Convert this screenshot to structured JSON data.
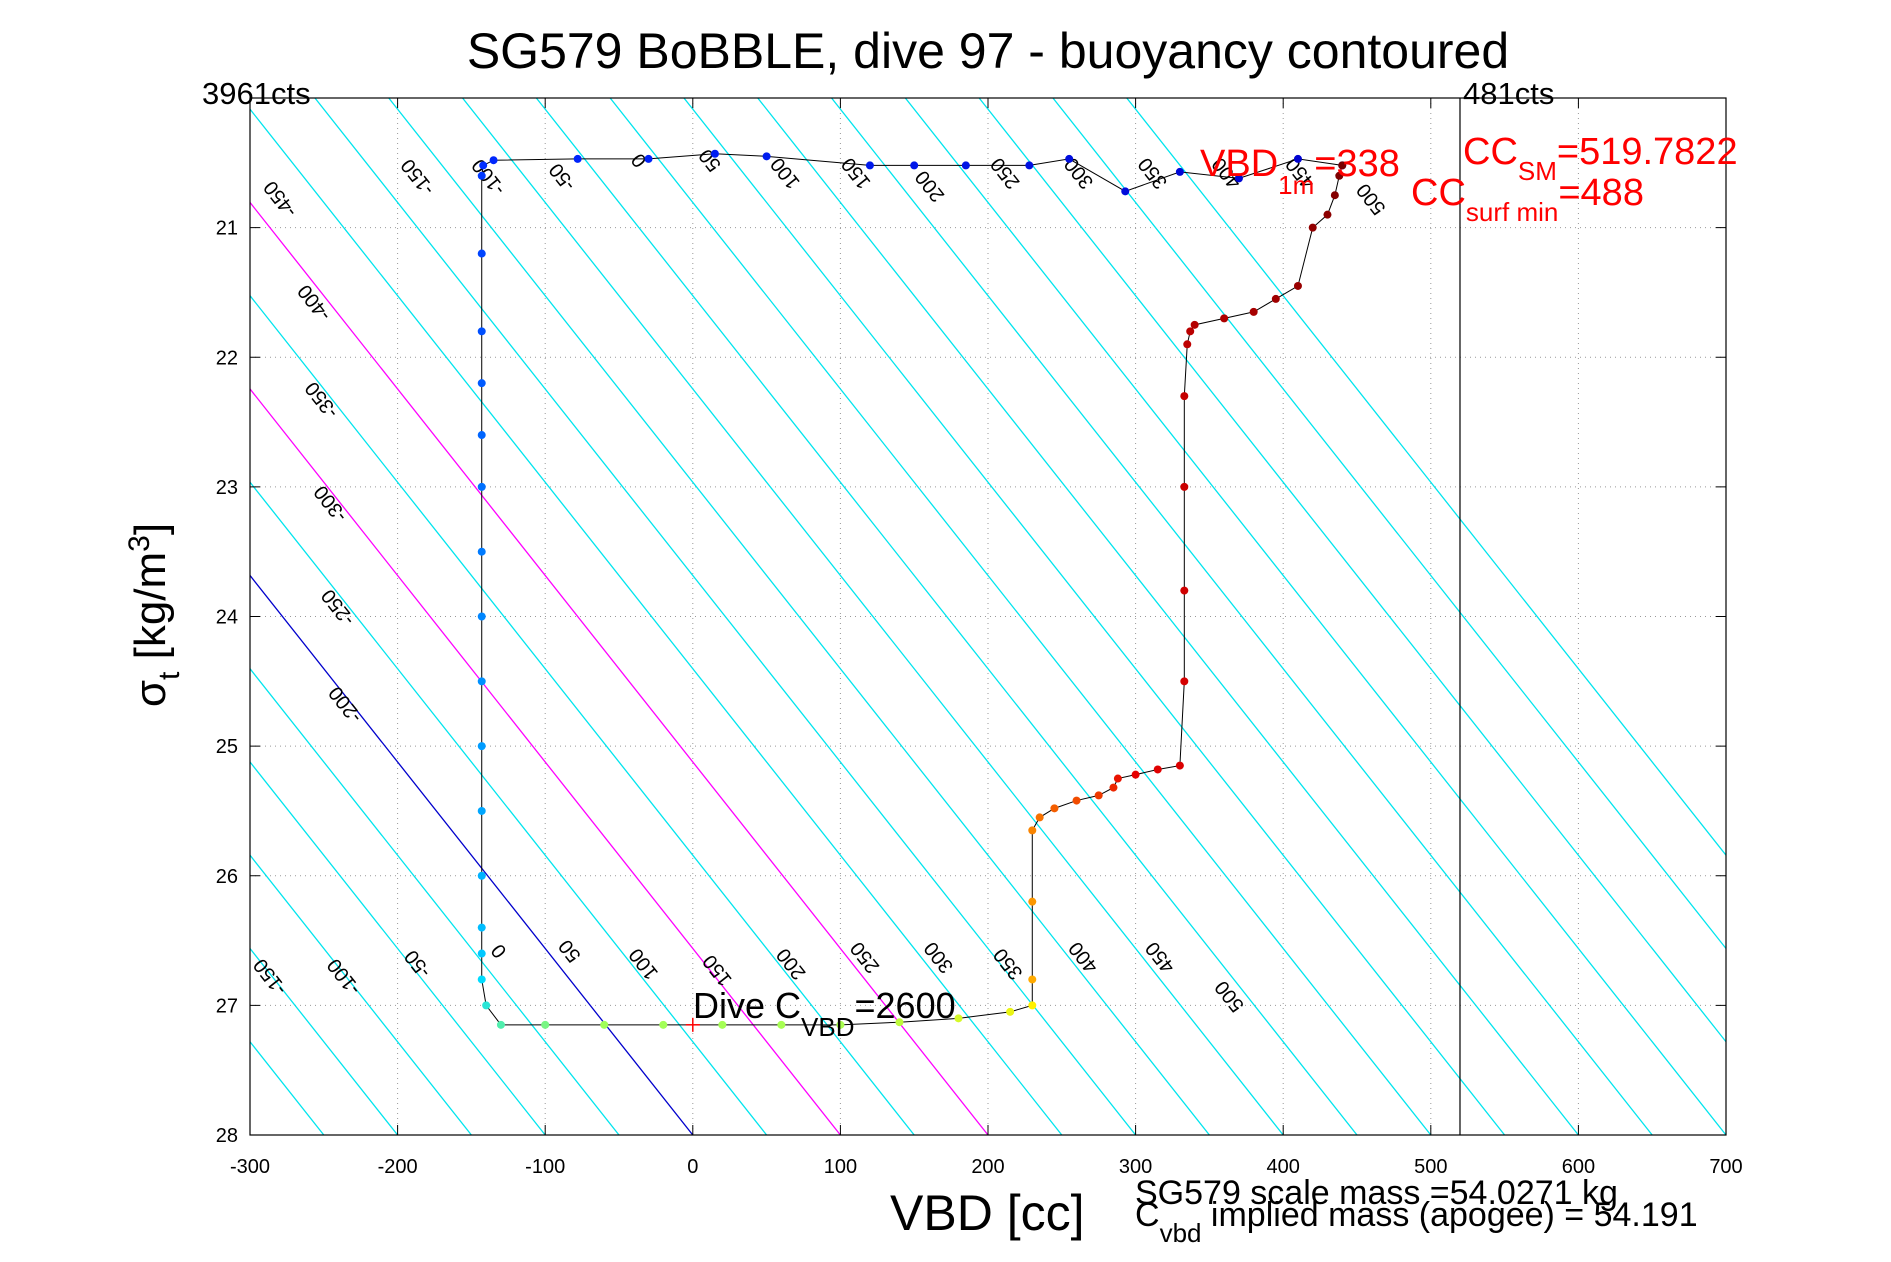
{
  "chart_data": {
    "type": "scatter",
    "title": "SG579 BoBBLE, dive 97 - buoyancy contoured",
    "xlabel": "VBD [cc]",
    "ylabel_main": "σ",
    "ylabel_sub": "t",
    "ylabel_unit_pre": " [kg/m",
    "ylabel_unit_sup": "3",
    "ylabel_unit_post": "]",
    "xlim": [
      -300,
      700
    ],
    "ylim": [
      20,
      28
    ],
    "y_reversed": true,
    "x_ticks": [
      -300,
      -200,
      -100,
      0,
      100,
      200,
      300,
      400,
      500,
      600,
      700
    ],
    "x_tick_labels": [
      "-300",
      "-200",
      "-100",
      "0",
      "100",
      "200",
      "300",
      "400",
      "500",
      "600",
      "700"
    ],
    "y_ticks": [
      20,
      21,
      22,
      23,
      24,
      25,
      26,
      27,
      28
    ],
    "y_tick_labels": [
      "20",
      "21",
      "22",
      "23",
      "24",
      "25",
      "26",
      "27",
      "28"
    ],
    "grid": true,
    "contour_slope_cc_per_sigma": 69.5,
    "contours": {
      "values": [
        -550,
        -500,
        -450,
        -400,
        -350,
        -300,
        -250,
        -200,
        -150,
        -100,
        -50,
        0,
        50,
        100,
        150,
        200,
        250,
        300,
        350,
        400,
        450,
        500,
        550,
        600,
        650,
        700,
        750,
        800,
        850
      ],
      "colors": {
        "default": "#00e5ee",
        "zero": "#0000cc",
        "special": "#ff00ff"
      },
      "special_values": [
        100,
        200
      ],
      "labels_top": [
        {
          "text": "-450",
          "vbd": -276,
          "sigma": 20.75
        },
        {
          "text": "-400",
          "vbd": -253,
          "sigma": 21.55
        },
        {
          "text": "-350",
          "vbd": -248,
          "sigma": 22.3
        },
        {
          "text": "-300",
          "vbd": -242,
          "sigma": 23.1
        },
        {
          "text": "-250",
          "vbd": -237,
          "sigma": 23.9
        },
        {
          "text": "-200",
          "vbd": -232,
          "sigma": 24.65
        },
        {
          "text": "-150",
          "vbd": -183,
          "sigma": 20.58
        },
        {
          "text": "-100",
          "vbd": -135,
          "sigma": 20.58
        },
        {
          "text": "-50",
          "vbd": -85,
          "sigma": 20.58
        },
        {
          "text": "0",
          "vbd": -33,
          "sigma": 20.45
        },
        {
          "text": "50",
          "vbd": 15,
          "sigma": 20.45
        },
        {
          "text": "100",
          "vbd": 66,
          "sigma": 20.55
        },
        {
          "text": "150",
          "vbd": 114,
          "sigma": 20.55
        },
        {
          "text": "200",
          "vbd": 164,
          "sigma": 20.65
        },
        {
          "text": "250",
          "vbd": 215,
          "sigma": 20.55
        },
        {
          "text": "300",
          "vbd": 265,
          "sigma": 20.55
        },
        {
          "text": "350",
          "vbd": 315,
          "sigma": 20.55
        },
        {
          "text": "400",
          "vbd": 365,
          "sigma": 20.55
        },
        {
          "text": "450",
          "vbd": 415,
          "sigma": 20.55
        },
        {
          "text": "500",
          "vbd": 463,
          "sigma": 20.75
        }
      ],
      "labels_bottom": [
        {
          "text": "-150",
          "vbd": -283,
          "sigma": 26.75
        },
        {
          "text": "-100",
          "vbd": -233,
          "sigma": 26.75
        },
        {
          "text": "-50",
          "vbd": -183,
          "sigma": 26.65
        },
        {
          "text": "0",
          "vbd": -128,
          "sigma": 26.55
        },
        {
          "text": "50",
          "vbd": -80,
          "sigma": 26.55
        },
        {
          "text": "100",
          "vbd": -30,
          "sigma": 26.65
        },
        {
          "text": "150",
          "vbd": 20,
          "sigma": 26.7
        },
        {
          "text": "200",
          "vbd": 70,
          "sigma": 26.65
        },
        {
          "text": "250",
          "vbd": 120,
          "sigma": 26.6
        },
        {
          "text": "300",
          "vbd": 170,
          "sigma": 26.6
        },
        {
          "text": "350",
          "vbd": 217,
          "sigma": 26.65
        },
        {
          "text": "400",
          "vbd": 268,
          "sigma": 26.6
        },
        {
          "text": "450",
          "vbd": 320,
          "sigma": 26.6
        },
        {
          "text": "500",
          "vbd": 367,
          "sigma": 26.9
        }
      ]
    },
    "vertical_line_vbd": 519.78,
    "corner_labels": {
      "left": "3961cts",
      "right": "481cts"
    },
    "annotations": {
      "vbd1m_main": "VBD",
      "vbd1m_sub": "1m",
      "vbd1m_value": "=338",
      "ccsm_main": "CC",
      "ccsm_sub": "SM",
      "ccsm_value": "=519.7822",
      "ccsurf_main": "CC",
      "ccsurf_sub": "surf min",
      "ccsurf_value": "=488",
      "dive_main": "Dive C",
      "dive_sub": "VBD",
      "dive_value": "=2600",
      "scale_mass": "SG579 scale mass =54.0271 kg",
      "cvbd_main": "C",
      "cvbd_sub": "vbd",
      "cvbd_value": " implied mass (apogee) = 54.191"
    },
    "dive_marker": {
      "vbd": 0,
      "sigma": 27.15
    },
    "series": [
      {
        "role": "dive-descent",
        "color_scale": "blue-to-cyan",
        "x": [
          440,
          410,
          370,
          330,
          293,
          255,
          228,
          185,
          150,
          120,
          50,
          15,
          -30,
          -78,
          -135,
          -142,
          -143,
          -143,
          -143,
          -143,
          -143,
          -143,
          -143,
          -143,
          -143,
          -143,
          -143,
          -143,
          -143,
          -143
        ],
        "y": [
          20.52,
          20.47,
          20.62,
          20.57,
          20.72,
          20.47,
          20.52,
          20.52,
          20.52,
          20.52,
          20.45,
          20.43,
          20.47,
          20.47,
          20.48,
          20.52,
          20.6,
          21.2,
          21.8,
          22.2,
          22.6,
          23.0,
          23.5,
          24.0,
          24.5,
          25.0,
          25.5,
          26.0,
          26.4,
          26.6
        ]
      },
      {
        "role": "bottom",
        "color_scale": "cyan-green-yellow",
        "x": [
          -143,
          -140,
          -130,
          -100,
          -60,
          -20,
          20,
          60,
          100,
          140,
          180,
          215,
          230
        ],
        "y": [
          26.8,
          27.0,
          27.15,
          27.15,
          27.15,
          27.15,
          27.15,
          27.15,
          27.15,
          27.13,
          27.1,
          27.05,
          27.0
        ]
      },
      {
        "role": "climb",
        "color_scale": "orange-to-darkred",
        "x": [
          230,
          230,
          230,
          235,
          245,
          260,
          275,
          285,
          288,
          300,
          315,
          330,
          333,
          333,
          333,
          333,
          335,
          337,
          340,
          360,
          380,
          395,
          410,
          420,
          430,
          435,
          438,
          440
        ],
        "y": [
          26.8,
          26.2,
          25.65,
          25.55,
          25.48,
          25.42,
          25.38,
          25.32,
          25.25,
          25.22,
          25.18,
          25.15,
          24.5,
          23.8,
          23.0,
          22.3,
          21.9,
          21.8,
          21.75,
          21.7,
          21.65,
          21.55,
          21.45,
          21.0,
          20.9,
          20.75,
          20.6,
          20.52
        ]
      }
    ]
  }
}
